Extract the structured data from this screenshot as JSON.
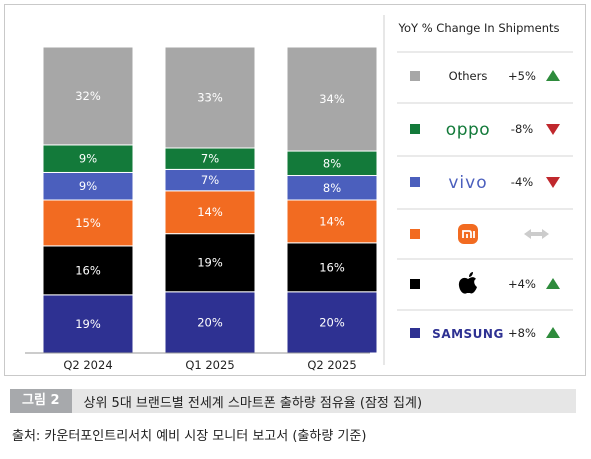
{
  "figure": {
    "number": "그림 2",
    "title": "상위 5대 브랜드별 전세계 스마트폰 출하량 점유율 (잠정 집계)",
    "source": "출처: 카운터포인트리서치 예비 시장 모니터 보고서 (출하량 기준)"
  },
  "chart_data": {
    "type": "bar",
    "stacked": true,
    "categories": [
      "Q2 2024",
      "Q1 2025",
      "Q2 2025"
    ],
    "ylim": [
      0,
      100
    ],
    "series": [
      {
        "name": "SAMSUNG",
        "color": "#2e3192",
        "values": [
          19,
          20,
          20
        ],
        "labels": [
          "19%",
          "20%",
          "20%"
        ]
      },
      {
        "name": "Apple",
        "color": "#000000",
        "values": [
          16,
          19,
          16
        ],
        "labels": [
          "16%",
          "19%",
          "16%"
        ]
      },
      {
        "name": "Xiaomi",
        "color": "#f26b21",
        "values": [
          15,
          14,
          14
        ],
        "labels": [
          "15%",
          "14%",
          "14%"
        ]
      },
      {
        "name": "vivo",
        "color": "#4b5fbd",
        "values": [
          9,
          7,
          8
        ],
        "labels": [
          "9%",
          "7%",
          "8%"
        ]
      },
      {
        "name": "oppo",
        "color": "#137a3a",
        "values": [
          9,
          7,
          8
        ],
        "labels": [
          "9%",
          "7%",
          "8%"
        ]
      },
      {
        "name": "Others",
        "color": "#a7a7a7",
        "values": [
          32,
          33,
          34
        ],
        "labels": [
          "32%",
          "33%",
          "34%"
        ]
      }
    ],
    "legend": {
      "title": "YoY % Change In Shipments",
      "placement": "right",
      "items": [
        {
          "brand": "Others",
          "display": "Others",
          "logo": "text",
          "color": "#a7a7a7",
          "change": "+5%",
          "trend": "up"
        },
        {
          "brand": "oppo",
          "display": "oppo",
          "logo": "oppo-logo",
          "color": "#137a3a",
          "change": "-8%",
          "trend": "down"
        },
        {
          "brand": "vivo",
          "display": "vivo",
          "logo": "vivo-logo",
          "color": "#4b5fbd",
          "change": "-4%",
          "trend": "down"
        },
        {
          "brand": "Xiaomi",
          "display": "",
          "logo": "xiaomi-logo",
          "color": "#f26b21",
          "change": "",
          "trend": "flat"
        },
        {
          "brand": "Apple",
          "display": "",
          "logo": "apple-logo",
          "color": "#000000",
          "change": "+4%",
          "trend": "up"
        },
        {
          "brand": "SAMSUNG",
          "display": "SAMSUNG",
          "logo": "samsung-logo",
          "color": "#2e3192",
          "change": "+8%",
          "trend": "up"
        }
      ],
      "trend_colors": {
        "up": "#2e8b3c",
        "down": "#c0282d",
        "flat": "#cccccc"
      }
    }
  }
}
